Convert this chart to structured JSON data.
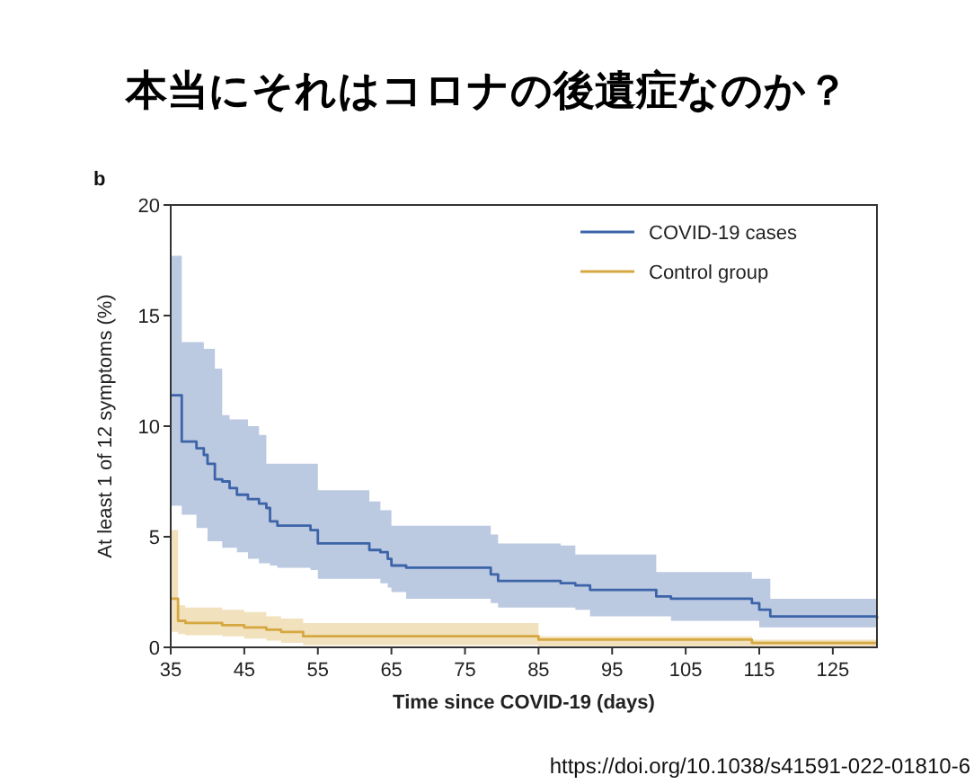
{
  "chart_data": {
    "type": "step",
    "title": "本当にそれはコロナの後遺症なのか？",
    "xlabel": "Time since COVID-19 (days)",
    "ylabel": "At least 1 of 12 symptoms (%)",
    "annotations": [
      "b",
      "https://doi.org/10.1038/s41591-022-01810-6"
    ],
    "xlim": [
      35,
      131
    ],
    "xticks": [
      35,
      45,
      55,
      65,
      75,
      85,
      95,
      105,
      115,
      125
    ],
    "ylim": [
      0,
      20
    ],
    "yticks": [
      0,
      5,
      10,
      15,
      20
    ],
    "grid": false,
    "legend": "top right",
    "series": [
      {
        "name": "COVID-19 cases",
        "color": "#3d64a8",
        "x": [
          35,
          36.5,
          38.5,
          39.5,
          40,
          41,
          42,
          43,
          44,
          45.5,
          47,
          48,
          48.5,
          49.5,
          54,
          55,
          62,
          63.5,
          64.5,
          65,
          67,
          78.5,
          79.5,
          88,
          90,
          92,
          101,
          103,
          114,
          115,
          116.5,
          131
        ],
        "values": [
          11.4,
          9.3,
          9.0,
          8.7,
          8.3,
          7.6,
          7.5,
          7.2,
          6.9,
          6.7,
          6.5,
          6.3,
          5.7,
          5.5,
          5.3,
          4.7,
          4.4,
          4.3,
          4.0,
          3.7,
          3.6,
          3.3,
          3.0,
          2.9,
          2.8,
          2.6,
          2.3,
          2.2,
          2.0,
          1.7,
          1.4,
          1.3
        ],
        "upper": [
          17.7,
          13.8,
          13.8,
          13.5,
          13.5,
          12.6,
          10.5,
          10.3,
          10.3,
          10.0,
          9.6,
          8.3,
          8.3,
          8.3,
          8.3,
          7.1,
          6.6,
          6.2,
          6.2,
          5.5,
          5.5,
          5.1,
          4.7,
          4.6,
          4.2,
          4.2,
          3.4,
          3.4,
          3.1,
          3.1,
          2.2,
          2.2
        ],
        "lower": [
          7.3,
          6.4,
          6.0,
          5.4,
          5.4,
          4.8,
          4.8,
          4.5,
          4.5,
          4.3,
          4.0,
          3.8,
          3.8,
          3.7,
          3.6,
          3.5,
          3.1,
          3.1,
          2.9,
          2.7,
          2.5,
          2.2,
          2.0,
          1.8,
          1.8,
          1.7,
          1.4,
          1.4,
          1.2,
          1.2,
          0.9,
          0.9
        ]
      },
      {
        "name": "Control group",
        "color": "#d6a841",
        "x": [
          35,
          36,
          37,
          42,
          45,
          48,
          50,
          53,
          85,
          114,
          131
        ],
        "values": [
          2.2,
          1.2,
          1.1,
          1.0,
          0.9,
          0.8,
          0.7,
          0.5,
          0.35,
          0.2,
          0.2
        ],
        "upper": [
          5.3,
          1.9,
          1.8,
          1.7,
          1.6,
          1.4,
          1.3,
          1.1,
          0.5,
          0.35,
          0.35
        ],
        "lower": [
          0.9,
          0.7,
          0.6,
          0.55,
          0.5,
          0.4,
          0.3,
          0.2,
          0.1,
          0.05,
          0.05
        ]
      }
    ]
  }
}
